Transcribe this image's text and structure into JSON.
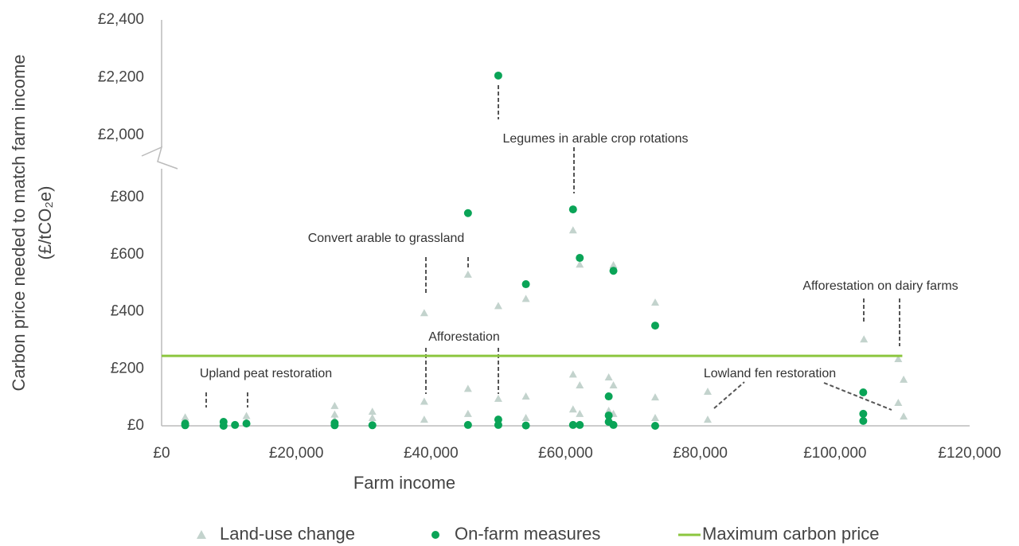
{
  "chart_data": {
    "type": "scatter",
    "x_label": "Farm income",
    "y_label": [
      "Carbon price needed to match farm income",
      "(£/tCO₂e)"
    ],
    "xlim": [
      0,
      120000
    ],
    "xticks": [
      {
        "value": 0,
        "label": "£0"
      },
      {
        "value": 20000,
        "label": "£20,000"
      },
      {
        "value": 40000,
        "label": "£40,000"
      },
      {
        "value": 60000,
        "label": "£60,000"
      },
      {
        "value": 80000,
        "label": "£80,000"
      },
      {
        "value": 100000,
        "label": "£100,000"
      },
      {
        "value": 120000,
        "label": "£120,000"
      }
    ],
    "ylim": [
      0,
      2400
    ],
    "y_break": [
      800,
      2000
    ],
    "yticks": [
      {
        "value": 0,
        "label": "£0"
      },
      {
        "value": 200,
        "label": "£200"
      },
      {
        "value": 400,
        "label": "£400"
      },
      {
        "value": 600,
        "label": "£600"
      },
      {
        "value": 800,
        "label": "£800"
      },
      {
        "value": 2000,
        "label": "£2,000"
      },
      {
        "value": 2200,
        "label": "£2,200"
      },
      {
        "value": 2400,
        "label": "£2,400"
      }
    ],
    "grid": false,
    "legend": "bottom",
    "series": [
      {
        "name": "Land-use change",
        "marker": "triangle",
        "color": "#c3d3cd",
        "x": [
          3500,
          3500,
          9200,
          12600,
          12600,
          25700,
          25700,
          25700,
          31300,
          31300,
          39000,
          39000,
          39000,
          45500,
          45500,
          45500,
          50000,
          50000,
          54100,
          54100,
          54100,
          61100,
          61100,
          61100,
          62100,
          62100,
          62100,
          66400,
          66400,
          67100,
          67100,
          67100,
          73300,
          73300,
          73300,
          81100,
          81100,
          104300,
          109400,
          109400,
          110200,
          110200
        ],
        "values": [
          30,
          10,
          10,
          35,
          15,
          70,
          40,
          20,
          50,
          28,
          395,
          85,
          22,
          530,
          130,
          42,
          420,
          95,
          445,
          103,
          28,
          685,
          180,
          58,
          565,
          142,
          42,
          170,
          53,
          563,
          142,
          42,
          432,
          100,
          28,
          120,
          22,
          303,
          234,
          81,
          162,
          33
        ]
      },
      {
        "name": "On-farm measures",
        "marker": "circle",
        "color": "#0aa457",
        "x": [
          3500,
          3500,
          9200,
          9200,
          10900,
          12600,
          25700,
          25700,
          31300,
          45500,
          45500,
          50000,
          50000,
          50000,
          54100,
          54100,
          61100,
          61100,
          62100,
          62100,
          66400,
          66400,
          66400,
          67100,
          67100,
          73300,
          73300,
          104200,
          104200,
          104200
        ],
        "values": [
          8,
          2,
          14,
          0,
          3,
          8,
          2,
          10,
          2,
          745,
          3,
          2207,
          22,
          3,
          496,
          1,
          758,
          3,
          588,
          3,
          103,
          36,
          14,
          543,
          3,
          351,
          0,
          117,
          42,
          17
        ]
      },
      {
        "name": "Maximum carbon price",
        "marker": "line",
        "color": "#8cc63f",
        "x": [
          0,
          110000
        ],
        "values": [
          245,
          245
        ]
      }
    ],
    "annotations": [
      "Upland peat restoration",
      "Convert arable to grassland",
      "Afforestation",
      "Legumes in arable crop rotations",
      "Afforestation on dairy farms",
      "Lowland fen restoration"
    ]
  }
}
